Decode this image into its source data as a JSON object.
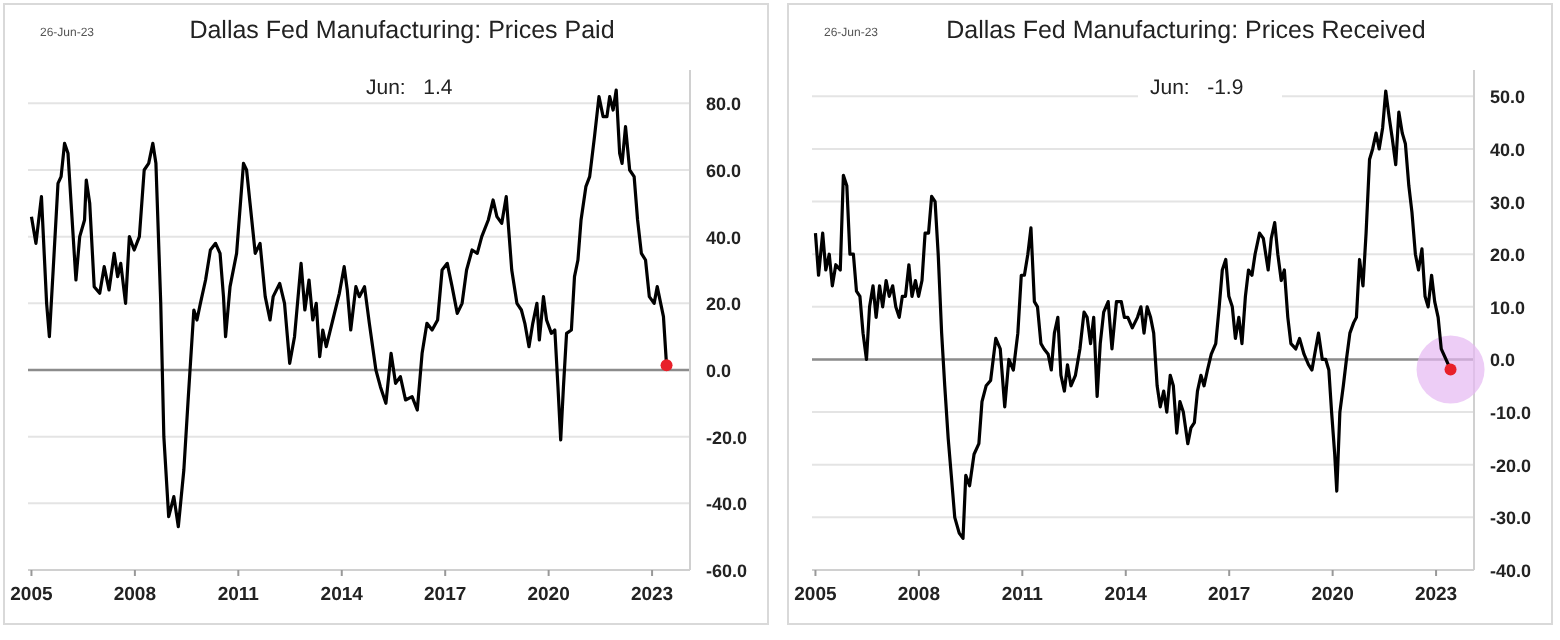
{
  "chart_data": [
    {
      "type": "line",
      "title": "Dallas Fed Manufacturing: Prices Paid",
      "annotations": [
        "26-Jun-23",
        "Jun:   1.4"
      ],
      "series": [
        {
          "color": "#000000",
          "x": [
            2005.0,
            2005.13,
            2005.29,
            2005.44,
            2005.52,
            2005.63,
            2005.77,
            2005.86,
            2005.96,
            2006.06,
            2006.15,
            2006.29,
            2006.4,
            2006.54,
            2006.59,
            2006.69,
            2006.82,
            2006.98,
            2007.11,
            2007.25,
            2007.4,
            2007.5,
            2007.59,
            2007.73,
            2007.84,
            2007.98,
            2008.13,
            2008.27,
            2008.4,
            2008.52,
            2008.61,
            2008.75,
            2008.84,
            2008.98,
            2009.13,
            2009.26,
            2009.42,
            2009.55,
            2009.71,
            2009.8,
            2009.9,
            2010.05,
            2010.19,
            2010.34,
            2010.47,
            2010.57,
            2010.63,
            2010.76,
            2010.95,
            2011.15,
            2011.24,
            2011.34,
            2011.49,
            2011.63,
            2011.78,
            2011.92,
            2012.01,
            2012.2,
            2012.34,
            2012.49,
            2012.63,
            2012.82,
            2012.93,
            2013.05,
            2013.16,
            2013.26,
            2013.36,
            2013.45,
            2013.55,
            2013.74,
            2013.93,
            2014.07,
            2014.16,
            2014.26,
            2014.41,
            2014.51,
            2014.66,
            2014.8,
            2014.99,
            2015.12,
            2015.28,
            2015.43,
            2015.56,
            2015.7,
            2015.85,
            2016.04,
            2016.19,
            2016.33,
            2016.47,
            2016.62,
            2016.78,
            2016.91,
            2017.06,
            2017.2,
            2017.35,
            2017.49,
            2017.62,
            2017.78,
            2017.93,
            2018.06,
            2018.25,
            2018.39,
            2018.5,
            2018.64,
            2018.77,
            2018.93,
            2019.08,
            2019.21,
            2019.31,
            2019.43,
            2019.54,
            2019.66,
            2019.73,
            2019.85,
            2019.94,
            2020.08,
            2020.18,
            2020.27,
            2020.35,
            2020.43,
            2020.52,
            2020.66,
            2020.75,
            2020.85,
            2020.94,
            2021.08,
            2021.19,
            2021.33,
            2021.46,
            2021.58,
            2021.69,
            2021.77,
            2021.87,
            2021.96,
            2022.06,
            2022.13,
            2022.23,
            2022.35,
            2022.48,
            2022.58,
            2022.69,
            2022.81,
            2022.92,
            2023.06,
            2023.15,
            2023.25,
            2023.33,
            2023.42
          ],
          "values": [
            46,
            38,
            52,
            20,
            10,
            30,
            56,
            58,
            68,
            65,
            50,
            27,
            40,
            45,
            57,
            50,
            25,
            23,
            31,
            24,
            35,
            28,
            32,
            20,
            40,
            36,
            40,
            60,
            62,
            68,
            62,
            20,
            -20,
            -44,
            -38,
            -47,
            -30,
            -8,
            18,
            15,
            20,
            27,
            36,
            38,
            35,
            22,
            10,
            25,
            35,
            62,
            60,
            50,
            35,
            38,
            22,
            15,
            22,
            26,
            20,
            2,
            10,
            32,
            18,
            27,
            15,
            20,
            4,
            12,
            7,
            15,
            23,
            31,
            24,
            12,
            25,
            22,
            25,
            14,
            0,
            -5,
            -10,
            5,
            -4,
            -2,
            -9,
            -8,
            -12,
            5,
            14,
            12,
            15,
            30,
            32,
            25,
            17,
            20,
            30,
            36,
            35,
            40,
            45,
            51,
            46,
            44,
            52,
            30,
            20,
            18,
            14,
            7,
            14,
            20,
            9,
            22,
            15,
            11,
            12,
            -5,
            -21,
            -5,
            11,
            12,
            28,
            33,
            45,
            55,
            58,
            70,
            82,
            76,
            76,
            82,
            78,
            84,
            65,
            62,
            73,
            60,
            58,
            45,
            35,
            33,
            22,
            20,
            25,
            20,
            16,
            1.4
          ]
        },
        {
          "type": "scatter",
          "color": "#e8202a",
          "marker": "circle",
          "x": [
            2023.42
          ],
          "values": [
            1.4
          ]
        }
      ],
      "xlim": [
        2004.9,
        2024.1
      ],
      "xticks": [
        2005,
        2008,
        2011,
        2014,
        2017,
        2020,
        2023
      ],
      "ylim": [
        -60,
        90
      ],
      "yticks": [
        {
          "value": -60,
          "label": "-60.0"
        },
        {
          "value": -40,
          "label": "-40.0"
        },
        {
          "value": -20,
          "label": "-20.0"
        },
        {
          "value": 0,
          "label": "0.0"
        },
        {
          "value": 20,
          "label": "20.0"
        },
        {
          "value": 40,
          "label": "40.0"
        },
        {
          "value": 60,
          "label": "60.0"
        },
        {
          "value": 80,
          "label": "80.0"
        }
      ],
      "grid": "y",
      "ref_lines": [
        {
          "axis": "y",
          "value": 0,
          "color": "#8c8c8c"
        }
      ]
    },
    {
      "type": "line",
      "title": "Dallas Fed Manufacturing: Prices Received",
      "annotations": [
        "26-Jun-23",
        "Jun:   -1.9"
      ],
      "series": [
        {
          "color": "#000000",
          "x": [
            2005.0,
            2005.09,
            2005.21,
            2005.3,
            2005.4,
            2005.49,
            2005.59,
            2005.72,
            2005.81,
            2005.91,
            2006.0,
            2006.1,
            2006.19,
            2006.29,
            2006.38,
            2006.48,
            2006.57,
            2006.67,
            2006.76,
            2006.86,
            2006.95,
            2007.05,
            2007.14,
            2007.24,
            2007.33,
            2007.43,
            2007.52,
            2007.61,
            2007.71,
            2007.8,
            2007.9,
            2007.99,
            2008.09,
            2008.18,
            2008.28,
            2008.37,
            2008.47,
            2008.56,
            2008.66,
            2008.75,
            2008.85,
            2008.94,
            2009.04,
            2009.17,
            2009.28,
            2009.36,
            2009.47,
            2009.6,
            2009.74,
            2009.83,
            2009.95,
            2010.08,
            2010.23,
            2010.36,
            2010.49,
            2010.61,
            2010.74,
            2010.87,
            2010.97,
            2011.06,
            2011.16,
            2011.25,
            2011.35,
            2011.44,
            2011.54,
            2011.63,
            2011.75,
            2011.84,
            2011.93,
            2012.03,
            2012.12,
            2012.22,
            2012.31,
            2012.41,
            2012.54,
            2012.67,
            2012.79,
            2012.88,
            2012.98,
            2013.07,
            2013.17,
            2013.26,
            2013.36,
            2013.49,
            2013.6,
            2013.73,
            2013.87,
            2013.96,
            2014.06,
            2014.19,
            2014.34,
            2014.44,
            2014.53,
            2014.62,
            2014.72,
            2014.81,
            2014.91,
            2015.0,
            2015.1,
            2015.19,
            2015.29,
            2015.38,
            2015.48,
            2015.57,
            2015.67,
            2015.8,
            2015.89,
            2015.99,
            2016.08,
            2016.18,
            2016.27,
            2016.37,
            2016.48,
            2016.61,
            2016.71,
            2016.8,
            2016.9,
            2016.99,
            2017.09,
            2017.18,
            2017.28,
            2017.37,
            2017.47,
            2017.56,
            2017.66,
            2017.75,
            2017.88,
            2017.99,
            2018.13,
            2018.22,
            2018.32,
            2018.41,
            2018.51,
            2018.6,
            2018.7,
            2018.79,
            2018.93,
            2019.04,
            2019.17,
            2019.3,
            2019.4,
            2019.48,
            2019.59,
            2019.7,
            2019.8,
            2019.89,
            2019.97,
            2020.06,
            2020.12,
            2020.21,
            2020.31,
            2020.4,
            2020.5,
            2020.61,
            2020.69,
            2020.78,
            2020.88,
            2020.97,
            2021.07,
            2021.16,
            2021.26,
            2021.35,
            2021.45,
            2021.54,
            2021.64,
            2021.73,
            2021.83,
            2021.92,
            2022.02,
            2022.11,
            2022.21,
            2022.3,
            2022.4,
            2022.49,
            2022.59,
            2022.68,
            2022.77,
            2022.87,
            2022.96,
            2023.06,
            2023.15,
            2023.42
          ],
          "values": [
            24,
            16,
            24,
            17,
            20,
            14,
            18,
            17,
            35,
            33,
            20,
            20,
            13,
            12,
            5,
            0,
            10,
            14,
            8,
            14,
            10,
            15,
            12,
            14,
            10,
            8,
            12,
            12,
            18,
            12,
            15,
            12,
            15,
            24,
            24,
            31,
            30,
            20,
            5,
            -5,
            -15,
            -22,
            -30,
            -33,
            -34,
            -22,
            -24,
            -18,
            -16,
            -8,
            -5,
            -4,
            4,
            2,
            -9,
            0,
            -2,
            5,
            16,
            16,
            20,
            25,
            11,
            10,
            3,
            2,
            1,
            -2,
            5,
            8,
            -3,
            -6,
            -1,
            -5,
            -3,
            2,
            9,
            8,
            3,
            8,
            -7,
            3,
            9,
            11,
            2,
            11,
            11,
            8,
            8,
            6,
            8,
            10,
            5,
            10,
            8,
            5,
            -5,
            -9,
            -6,
            -10,
            -3,
            -5,
            -14,
            -8,
            -10,
            -16,
            -13,
            -12,
            -6,
            -3,
            -5,
            -2,
            1,
            3,
            10,
            17,
            19,
            12,
            10,
            4,
            8,
            3,
            12,
            17,
            16,
            20,
            24,
            23,
            17,
            23,
            26,
            20,
            15,
            17,
            8,
            3,
            2,
            4,
            1,
            -1,
            -2,
            1,
            5,
            0,
            0,
            -2,
            -10,
            -18,
            -25,
            -10,
            -5,
            0,
            5,
            7,
            8,
            19,
            14,
            24,
            38,
            40,
            43,
            40,
            44,
            51,
            46,
            42,
            37,
            47,
            43,
            41,
            33,
            28,
            20,
            17,
            21,
            12,
            10,
            16,
            11,
            8,
            2,
            -1.9
          ]
        },
        {
          "type": "scatter",
          "color": "#e8202a",
          "marker": "circle",
          "x": [
            2023.42
          ],
          "values": [
            -1.9
          ]
        }
      ],
      "xlim": [
        2004.9,
        2024.1
      ],
      "xticks": [
        2005,
        2008,
        2011,
        2014,
        2017,
        2020,
        2023
      ],
      "ylim": [
        -40,
        55
      ],
      "yticks": [
        {
          "value": -40,
          "label": "-40.0"
        },
        {
          "value": -30,
          "label": "-30.0"
        },
        {
          "value": -20,
          "label": "-20.0"
        },
        {
          "value": -10,
          "label": "-10.0"
        },
        {
          "value": 0,
          "label": "0.0"
        },
        {
          "value": 10,
          "label": "10.0"
        },
        {
          "value": 20,
          "label": "20.0"
        },
        {
          "value": 30,
          "label": "30.0"
        },
        {
          "value": 40,
          "label": "40.0"
        },
        {
          "value": 50,
          "label": "50.0"
        }
      ],
      "grid": "y",
      "ref_lines": [
        {
          "axis": "y",
          "value": 0,
          "color": "#8c8c8c"
        }
      ]
    }
  ]
}
